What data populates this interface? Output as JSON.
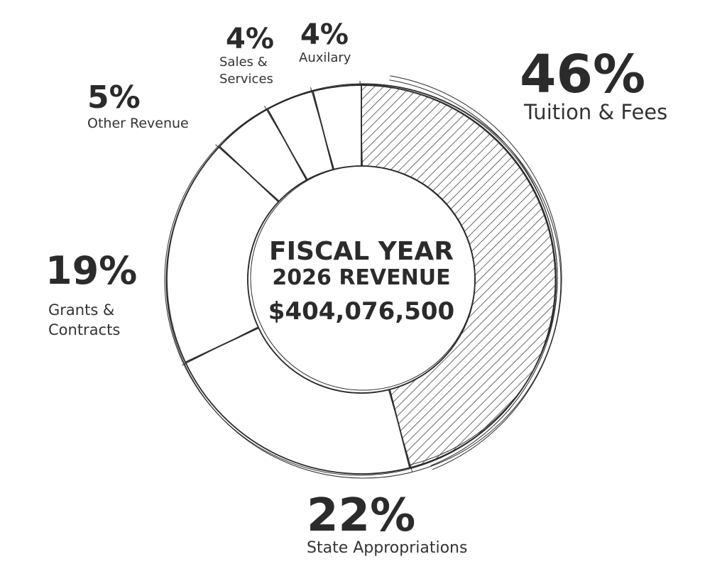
{
  "chart_data": {
    "type": "pie",
    "style": "donut, hand-sketched outline, hatched largest slice",
    "center": {
      "line1": "FISCAL YEAR",
      "line2": "2026 REVENUE",
      "total": "$404,076,500"
    },
    "slices": [
      {
        "name": "Tuition & Fees",
        "value": 46,
        "label": "46%",
        "hatched": true
      },
      {
        "name": "State Appropriations",
        "value": 22,
        "label": "22%",
        "hatched": false
      },
      {
        "name": "Grants & Contracts",
        "value": 19,
        "label": "19%",
        "hatched": false
      },
      {
        "name": "Other Revenue",
        "value": 5,
        "label": "5%",
        "hatched": false
      },
      {
        "name": "Sales & Services",
        "value": 4,
        "label": "4%",
        "hatched": false
      },
      {
        "name": "Auxilary",
        "value": 4,
        "label": "4%",
        "hatched": false
      }
    ],
    "colors": {
      "stroke": "#2b2b2b",
      "fill": "#ffffff",
      "hatch": "#2b2b2b"
    }
  }
}
